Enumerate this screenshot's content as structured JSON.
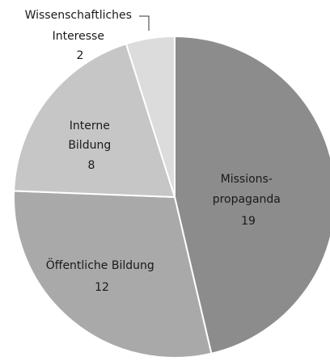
{
  "chart_data": {
    "type": "pie",
    "title": "",
    "start_angle_deg": 0,
    "direction": "clockwise",
    "slices": [
      {
        "name_lines": [
          "Missions-",
          "propaganda"
        ],
        "value": 19,
        "color": "#8c8c8c"
      },
      {
        "name_lines": [
          "Öffentliche Bildung"
        ],
        "value": 12,
        "color": "#a9a9a9"
      },
      {
        "name_lines": [
          "Interne",
          "Bildung"
        ],
        "value": 8,
        "color": "#c6c6c6"
      },
      {
        "name_lines": [
          "Wissenschaftliches",
          "Interesse"
        ],
        "value": 2,
        "color": "#dcdcdc"
      }
    ],
    "labels": [
      {
        "lines": [
          "Missions-",
          "propaganda"
        ],
        "value_text": "19"
      },
      {
        "lines": [
          "Öffentliche Bildung"
        ],
        "value_text": "12"
      },
      {
        "lines": [
          "Interne",
          "Bildung"
        ],
        "value_text": "8"
      },
      {
        "lines": [
          "Wissenschaftliches",
          "Interesse"
        ],
        "value_text": "2"
      }
    ]
  }
}
